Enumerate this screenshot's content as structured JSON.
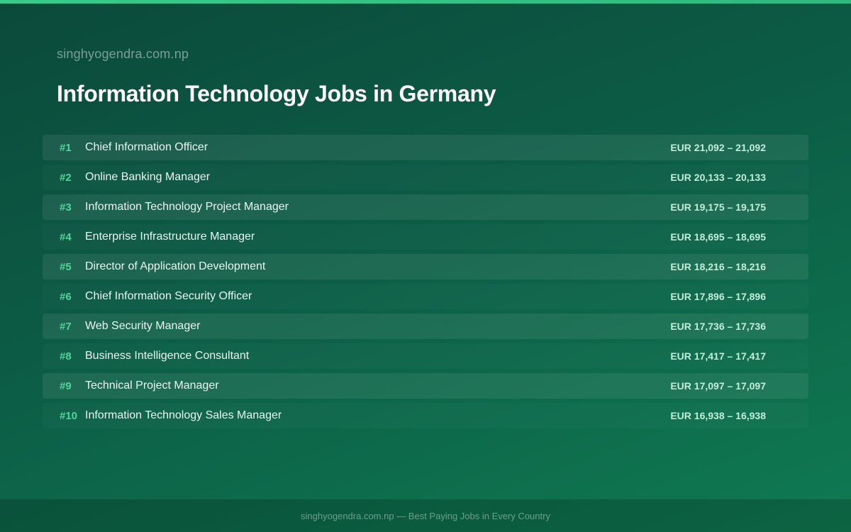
{
  "header": {
    "site_name": "singhyogendra.com.np",
    "title": "Information Technology Jobs in Germany"
  },
  "jobs": [
    {
      "rank": "#1",
      "title": "Chief Information Officer",
      "salary": "EUR 21,092 – 21,092"
    },
    {
      "rank": "#2",
      "title": "Online Banking Manager",
      "salary": "EUR 20,133 – 20,133"
    },
    {
      "rank": "#3",
      "title": "Information Technology Project Manager",
      "salary": "EUR 19,175 – 19,175"
    },
    {
      "rank": "#4",
      "title": "Enterprise Infrastructure Manager",
      "salary": "EUR 18,695 – 18,695"
    },
    {
      "rank": "#5",
      "title": "Director of Application Development",
      "salary": "EUR 18,216 – 18,216"
    },
    {
      "rank": "#6",
      "title": "Chief Information Security Officer",
      "salary": "EUR 17,896 – 17,896"
    },
    {
      "rank": "#7",
      "title": "Web Security Manager",
      "salary": "EUR 17,736 – 17,736"
    },
    {
      "rank": "#8",
      "title": "Business Intelligence Consultant",
      "salary": "EUR 17,417 – 17,417"
    },
    {
      "rank": "#9",
      "title": "Technical Project Manager",
      "salary": "EUR 17,097 – 17,097"
    },
    {
      "rank": "#10",
      "title": "Information Technology Sales Manager",
      "salary": "EUR 16,938 – 16,938"
    }
  ],
  "footer": {
    "text": "singhyogendra.com.np — Best Paying Jobs in Every Country"
  },
  "colors": {
    "accent": "#4fd698",
    "top_bar": "#3ac98c",
    "background": "#0c5a44"
  }
}
